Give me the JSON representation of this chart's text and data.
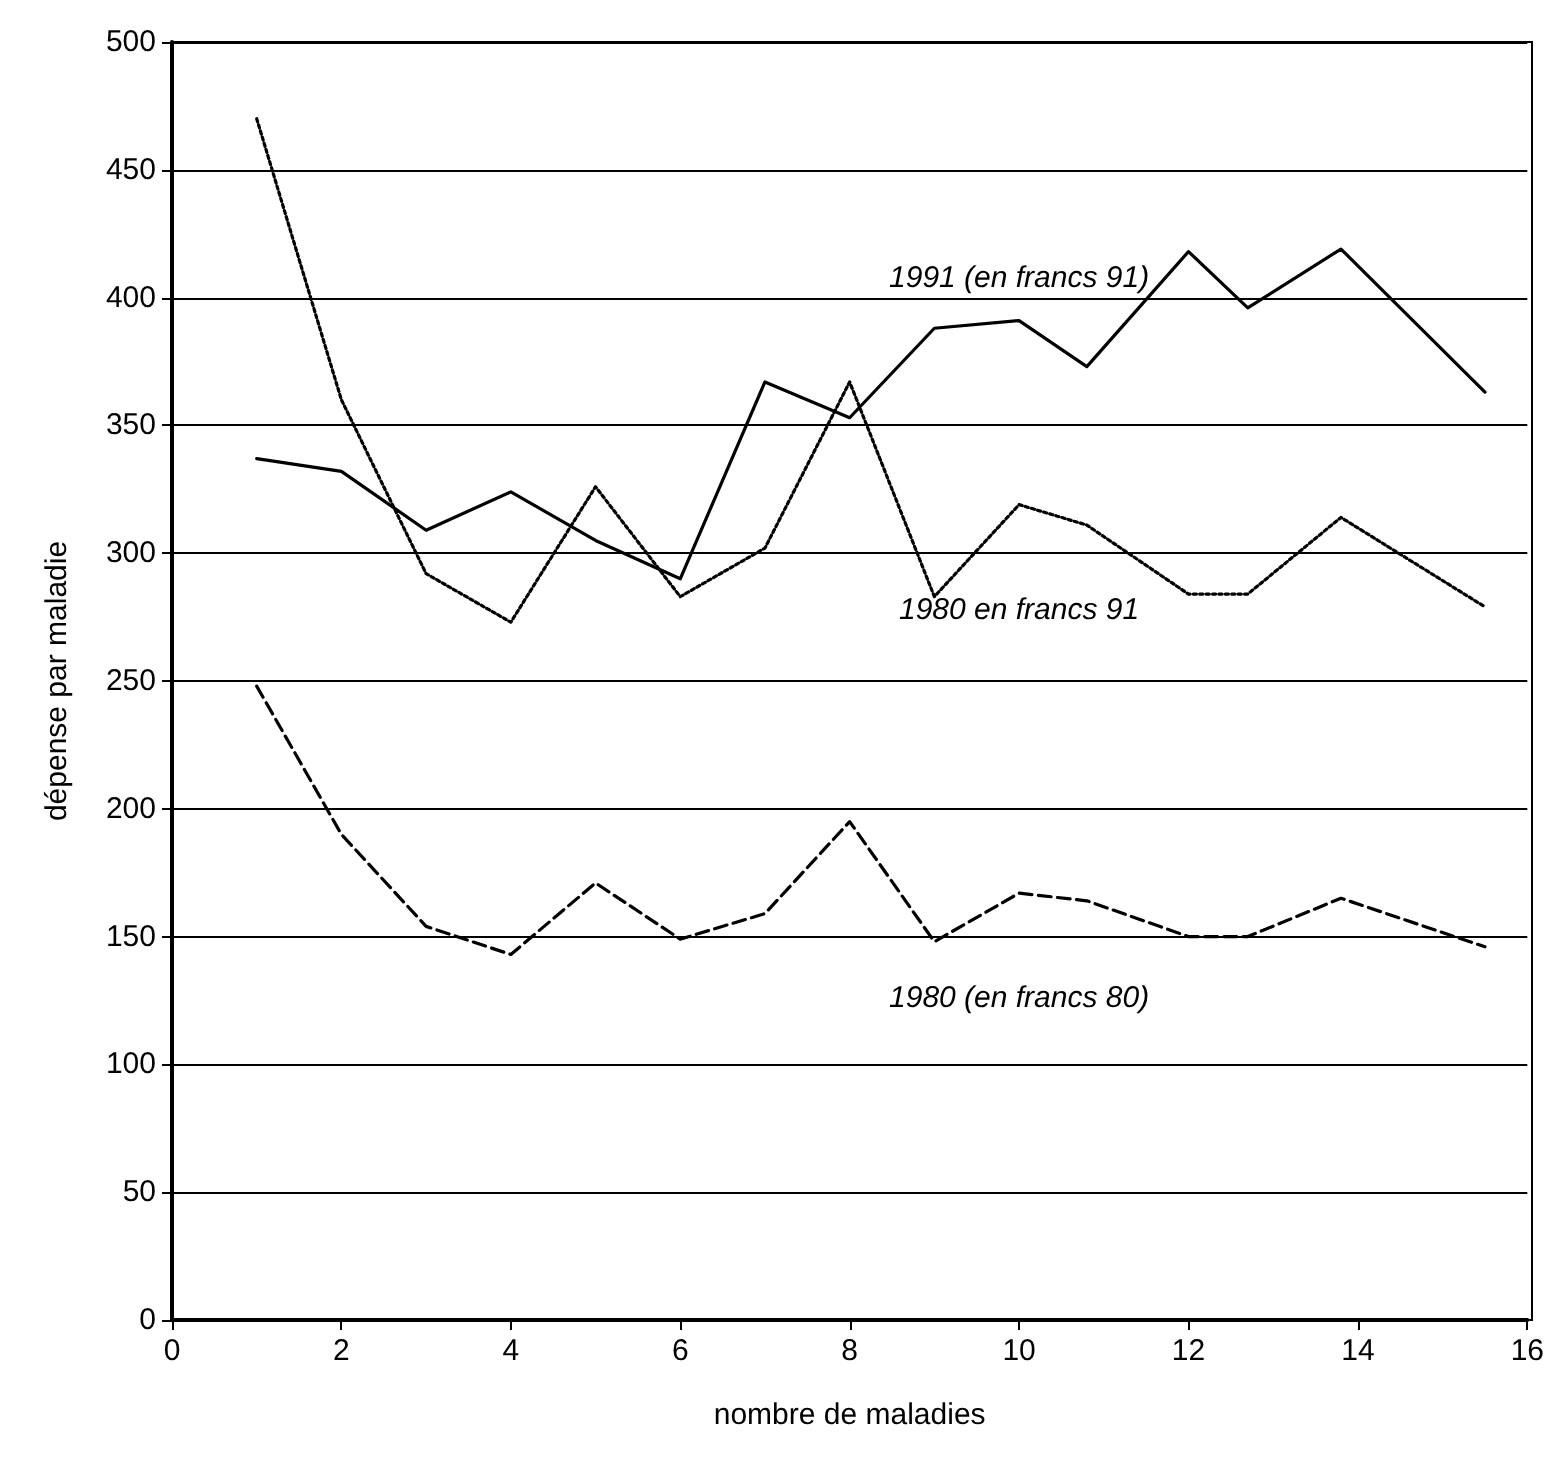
{
  "chart_data": {
    "type": "line",
    "xlabel": "nombre de maladies",
    "ylabel": "dépense par maladie",
    "x": [
      1,
      2,
      3,
      4,
      5,
      6,
      7,
      8,
      9,
      10,
      10.8,
      12,
      12.7,
      13.8,
      15.5
    ],
    "series": [
      {
        "name": "1991 (en francs 91)",
        "color": "#000000",
        "line_style": "solid",
        "values": [
          337,
          332,
          309,
          324,
          305,
          290,
          367,
          353,
          388,
          391,
          373,
          418,
          396,
          419,
          363
        ]
      },
      {
        "name": "1980 en francs 91",
        "color": "#000000",
        "line_style": "dotted",
        "values": [
          470,
          360,
          292,
          273,
          326,
          283,
          302,
          367,
          283,
          319,
          311,
          284,
          284,
          314,
          279
        ]
      },
      {
        "name": "1980 (en francs 80)",
        "color": "#000000",
        "line_style": "dashed",
        "values": [
          248,
          190,
          154,
          143,
          171,
          149,
          159,
          195,
          148,
          167,
          164,
          150,
          150,
          165,
          146
        ]
      }
    ],
    "xlim": [
      0,
      16
    ],
    "xticks": [
      0,
      2,
      4,
      6,
      8,
      10,
      12,
      14,
      16
    ],
    "ylim": [
      0,
      500
    ],
    "yticks": [
      0,
      50,
      100,
      150,
      200,
      250,
      300,
      350,
      400,
      450,
      500
    ],
    "grid": "y",
    "legend": false,
    "marker": "none"
  }
}
